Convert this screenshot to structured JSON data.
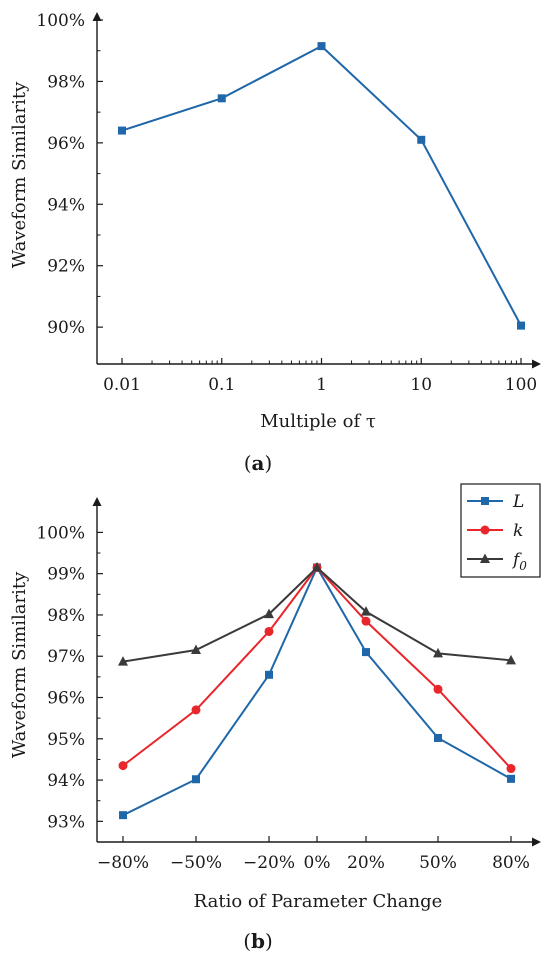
{
  "chart_data": [
    {
      "type": "line",
      "xscale": "log",
      "x": [
        0.01,
        0.1,
        1,
        10,
        100
      ],
      "x_tick_labels": [
        "0.01",
        "0.1",
        "1",
        "10",
        "100"
      ],
      "series": [
        {
          "values": [
            96.4,
            97.45,
            99.15,
            96.1,
            90.05
          ],
          "color": "#1f67a8",
          "marker": "square"
        }
      ],
      "y_tick_values": [
        90,
        92,
        94,
        96,
        98,
        100
      ],
      "y_tick_labels": [
        "90%",
        "92%",
        "94%",
        "96%",
        "98%",
        "100%"
      ],
      "ylim": [
        88.8,
        100
      ],
      "xlabel": "Multiple of τ",
      "ylabel": "Waveform Similarity",
      "caption": "a"
    },
    {
      "type": "line",
      "categories": [
        "−80%",
        "−50%",
        "−20%",
        "0%",
        "20%",
        "50%",
        "80%"
      ],
      "x": [
        -80,
        -50,
        -20,
        0,
        20,
        50,
        80
      ],
      "series": [
        {
          "name": "L",
          "values": [
            93.15,
            94.02,
            96.55,
            99.15,
            97.1,
            95.02,
            94.03
          ],
          "color": "#1f67a8",
          "marker": "square"
        },
        {
          "name": "k",
          "values": [
            94.35,
            95.7,
            97.6,
            99.15,
            97.85,
            96.2,
            94.28
          ],
          "color": "#e8262b",
          "marker": "circle"
        },
        {
          "name": "f0",
          "name_sub": "0",
          "name_base": "f",
          "values": [
            96.87,
            97.15,
            98.02,
            99.15,
            98.08,
            97.07,
            96.9
          ],
          "color": "#3a3a3a",
          "marker": "triangle"
        }
      ],
      "y_tick_values": [
        93,
        94,
        95,
        96,
        97,
        98,
        99,
        100
      ],
      "y_tick_labels": [
        "93%",
        "94%",
        "95%",
        "96%",
        "97%",
        "98%",
        "99%",
        "100%"
      ],
      "ylim": [
        92.5,
        100.3
      ],
      "xlabel": "Ratio of Parameter Change",
      "ylabel": "Waveform Similarity",
      "legend_position": "top-right",
      "caption": "b"
    }
  ]
}
